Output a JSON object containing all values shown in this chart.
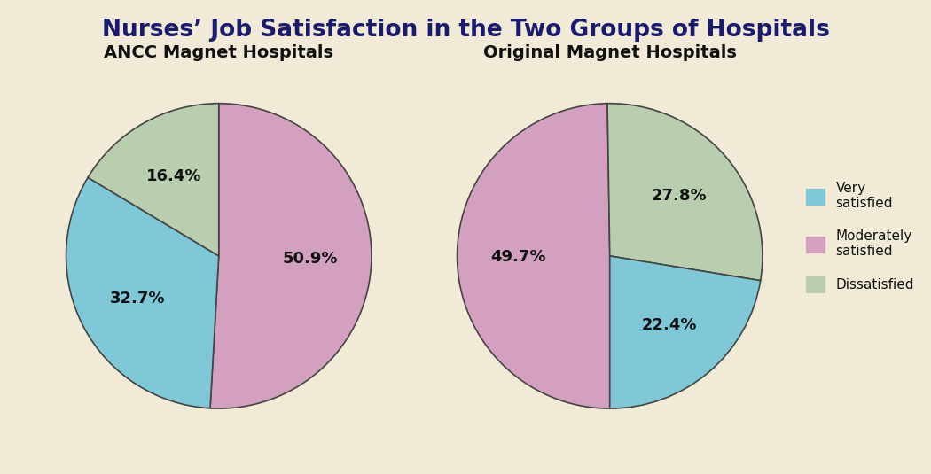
{
  "title": "Nurses’ Job Satisfaction in the Two Groups of Hospitals",
  "title_color": "#1a1a6e",
  "title_fontsize": 19,
  "background_color": "#f0ead6",
  "pie1_title": "ANCC Magnet Hospitals",
  "pie2_title": "Original Magnet Hospitals",
  "subtitle_fontsize": 14,
  "colors_very": "#7ec8d8",
  "colors_mod": "#d4a0c0",
  "colors_dis": "#b8ceae",
  "label_fontsize": 13,
  "legend_fontsize": 11,
  "pie1_order": [
    "mod",
    "very",
    "dis"
  ],
  "pie1_values": [
    50.9,
    32.7,
    16.4
  ],
  "pie1_startangle": 90,
  "pie1_label_texts": [
    "50.9%",
    "32.7%",
    "16.4%"
  ],
  "pie2_order": [
    "mod",
    "dis",
    "very"
  ],
  "pie2_values": [
    49.7,
    27.8,
    22.4
  ],
  "pie2_startangle": 270,
  "pie2_label_texts": [
    "49.7%",
    "27.8%",
    "22.4%"
  ],
  "edge_color": "#444444",
  "edge_linewidth": 1.2
}
